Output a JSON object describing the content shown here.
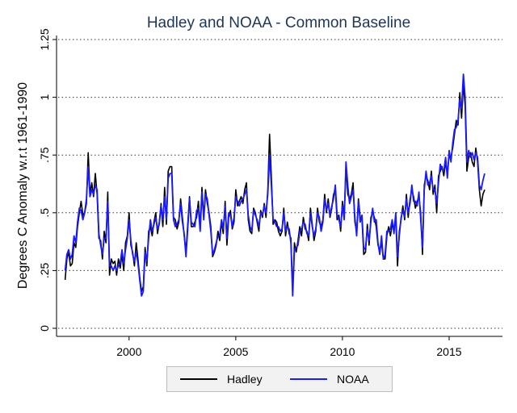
{
  "chart_data": {
    "type": "line",
    "title": "Hadley and NOAA - Common Baseline",
    "xlabel": "",
    "ylabel": "Degrees C Anomaly w.r.t 1961-1990",
    "xlim": [
      1996.6,
      2017.5
    ],
    "ylim": [
      0,
      1.25
    ],
    "x_ticks": [
      2000,
      2005,
      2010,
      2015
    ],
    "y_ticks": [
      {
        "value": 0,
        "label": "0"
      },
      {
        "value": 0.25,
        "label": ".25"
      },
      {
        "value": 0.5,
        "label": ".5"
      },
      {
        "value": 0.75,
        "label": ".75"
      },
      {
        "value": 1,
        "label": "1"
      },
      {
        "value": 1.25,
        "label": "1.25"
      }
    ],
    "grid": true,
    "legend_position": "bottom",
    "series": [
      {
        "name": "Hadley",
        "color": "#000000",
        "x_start": 1997.0,
        "step": 0.0833333,
        "values": [
          0.21,
          0.3,
          0.33,
          0.27,
          0.28,
          0.37,
          0.35,
          0.44,
          0.5,
          0.55,
          0.49,
          0.5,
          0.54,
          0.76,
          0.58,
          0.63,
          0.57,
          0.67,
          0.58,
          0.39,
          0.38,
          0.3,
          0.42,
          0.37,
          0.59,
          0.23,
          0.3,
          0.28,
          0.29,
          0.23,
          0.3,
          0.26,
          0.32,
          0.25,
          0.37,
          0.4,
          0.5,
          0.36,
          0.33,
          0.27,
          0.37,
          0.3,
          0.22,
          0.16,
          0.18,
          0.35,
          0.27,
          0.42,
          0.44,
          0.4,
          0.46,
          0.5,
          0.41,
          0.46,
          0.54,
          0.44,
          0.61,
          0.45,
          0.68,
          0.7,
          0.7,
          0.48,
          0.47,
          0.43,
          0.46,
          0.56,
          0.48,
          0.4,
          0.33,
          0.45,
          0.57,
          0.44,
          0.44,
          0.46,
          0.48,
          0.55,
          0.43,
          0.61,
          0.48,
          0.6,
          0.54,
          0.5,
          0.44,
          0.31,
          0.33,
          0.36,
          0.42,
          0.38,
          0.46,
          0.41,
          0.55,
          0.36,
          0.48,
          0.51,
          0.43,
          0.46,
          0.6,
          0.53,
          0.55,
          0.57,
          0.54,
          0.6,
          0.63,
          0.47,
          0.42,
          0.41,
          0.52,
          0.5,
          0.46,
          0.42,
          0.51,
          0.48,
          0.54,
          0.48,
          0.6,
          0.84,
          0.66,
          0.45,
          0.47,
          0.46,
          0.42,
          0.4,
          0.42,
          0.52,
          0.4,
          0.46,
          0.41,
          0.39,
          0.16,
          0.37,
          0.33,
          0.38,
          0.44,
          0.4,
          0.48,
          0.43,
          0.42,
          0.38,
          0.52,
          0.45,
          0.38,
          0.42,
          0.52,
          0.46,
          0.44,
          0.47,
          0.58,
          0.5,
          0.56,
          0.48,
          0.52,
          0.58,
          0.6,
          0.47,
          0.49,
          0.42,
          0.55,
          0.48,
          0.7,
          0.58,
          0.56,
          0.58,
          0.63,
          0.46,
          0.42,
          0.56,
          0.48,
          0.47,
          0.32,
          0.33,
          0.45,
          0.36,
          0.48,
          0.5,
          0.48,
          0.44,
          0.36,
          0.34,
          0.37,
          0.3,
          0.3,
          0.4,
          0.44,
          0.4,
          0.45,
          0.43,
          0.48,
          0.27,
          0.42,
          0.47,
          0.53,
          0.47,
          0.58,
          0.48,
          0.56,
          0.6,
          0.57,
          0.52,
          0.55,
          0.57,
          0.5,
          0.32,
          0.62,
          0.66,
          0.64,
          0.6,
          0.68,
          0.58,
          0.62,
          0.5,
          0.66,
          0.68,
          0.7,
          0.66,
          0.72,
          0.67,
          0.75,
          0.74,
          0.78,
          0.84,
          0.9,
          0.88,
          1.02,
          0.91,
          1.06,
          0.96,
          0.68,
          0.74,
          0.76,
          0.72,
          0.7,
          0.78,
          0.72,
          0.6,
          0.53,
          0.58,
          0.6
        ]
      },
      {
        "name": "NOAA",
        "color": "#1a1aff",
        "x_start": 1997.0,
        "step": 0.0833333,
        "values": [
          0.25,
          0.32,
          0.34,
          0.3,
          0.32,
          0.4,
          0.37,
          0.46,
          0.52,
          0.51,
          0.47,
          0.5,
          0.56,
          0.7,
          0.57,
          0.6,
          0.58,
          0.62,
          0.6,
          0.41,
          0.36,
          0.32,
          0.39,
          0.39,
          0.55,
          0.27,
          0.27,
          0.25,
          0.27,
          0.25,
          0.27,
          0.28,
          0.34,
          0.28,
          0.34,
          0.39,
          0.47,
          0.38,
          0.32,
          0.29,
          0.33,
          0.28,
          0.21,
          0.14,
          0.16,
          0.33,
          0.29,
          0.39,
          0.47,
          0.42,
          0.45,
          0.48,
          0.43,
          0.45,
          0.53,
          0.47,
          0.57,
          0.47,
          0.65,
          0.67,
          0.67,
          0.47,
          0.44,
          0.45,
          0.47,
          0.54,
          0.46,
          0.41,
          0.31,
          0.43,
          0.56,
          0.46,
          0.45,
          0.44,
          0.51,
          0.52,
          0.42,
          0.59,
          0.47,
          0.58,
          0.56,
          0.49,
          0.42,
          0.32,
          0.34,
          0.37,
          0.4,
          0.4,
          0.47,
          0.43,
          0.53,
          0.39,
          0.5,
          0.49,
          0.44,
          0.48,
          0.57,
          0.55,
          0.53,
          0.55,
          0.56,
          0.58,
          0.6,
          0.49,
          0.44,
          0.42,
          0.51,
          0.49,
          0.47,
          0.44,
          0.5,
          0.49,
          0.53,
          0.5,
          0.58,
          0.75,
          0.62,
          0.47,
          0.46,
          0.44,
          0.44,
          0.42,
          0.43,
          0.5,
          0.42,
          0.44,
          0.43,
          0.37,
          0.14,
          0.34,
          0.35,
          0.36,
          0.42,
          0.43,
          0.46,
          0.45,
          0.41,
          0.4,
          0.5,
          0.44,
          0.4,
          0.43,
          0.5,
          0.48,
          0.42,
          0.46,
          0.56,
          0.51,
          0.54,
          0.49,
          0.53,
          0.56,
          0.62,
          0.49,
          0.47,
          0.44,
          0.53,
          0.47,
          0.72,
          0.62,
          0.54,
          0.57,
          0.6,
          0.48,
          0.4,
          0.55,
          0.46,
          0.49,
          0.34,
          0.35,
          0.43,
          0.38,
          0.46,
          0.52,
          0.46,
          0.47,
          0.37,
          0.32,
          0.4,
          0.3,
          0.32,
          0.42,
          0.42,
          0.43,
          0.47,
          0.41,
          0.5,
          0.31,
          0.4,
          0.48,
          0.51,
          0.48,
          0.56,
          0.5,
          0.54,
          0.62,
          0.55,
          0.55,
          0.53,
          0.59,
          0.47,
          0.35,
          0.6,
          0.68,
          0.62,
          0.63,
          0.66,
          0.6,
          0.6,
          0.54,
          0.63,
          0.71,
          0.69,
          0.68,
          0.74,
          0.65,
          0.77,
          0.72,
          0.8,
          0.86,
          0.87,
          0.9,
          0.99,
          0.95,
          1.1,
          1.0,
          0.72,
          0.77,
          0.74,
          0.76,
          0.73,
          0.76,
          0.74,
          0.62,
          0.6,
          0.64,
          0.67
        ]
      }
    ]
  }
}
